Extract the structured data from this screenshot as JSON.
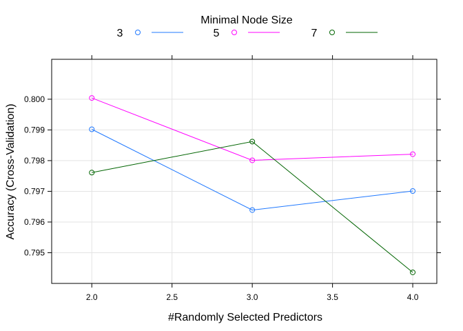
{
  "chart_data": {
    "type": "line",
    "title": "",
    "xlabel": "#Randomly Selected Predictors",
    "ylabel": "Accuracy (Cross-Validation)",
    "xlim": [
      1.75,
      4.15
    ],
    "ylim": [
      0.794,
      0.8013
    ],
    "x_ticks": [
      2.0,
      2.5,
      3.0,
      3.5,
      4.0
    ],
    "x_tick_labels": [
      "2.0",
      "2.5",
      "3.0",
      "3.5",
      "4.0"
    ],
    "y_ticks": [
      0.795,
      0.796,
      0.797,
      0.798,
      0.799,
      0.8
    ],
    "y_tick_labels": [
      "0.795",
      "0.796",
      "0.797",
      "0.798",
      "0.799",
      "0.800"
    ],
    "grid": true,
    "legend": {
      "title": "Minimal Node Size",
      "position": "top"
    },
    "x": [
      2.0,
      3.0,
      4.0
    ],
    "series": [
      {
        "name": "3",
        "color": "#1f78ff",
        "values": [
          0.79902,
          0.79639,
          0.79701
        ]
      },
      {
        "name": "5",
        "color": "#ff00ff",
        "values": [
          0.80004,
          0.79801,
          0.79821
        ]
      },
      {
        "name": "7",
        "color": "#006400",
        "values": [
          0.79761,
          0.79862,
          0.79436
        ]
      }
    ]
  }
}
